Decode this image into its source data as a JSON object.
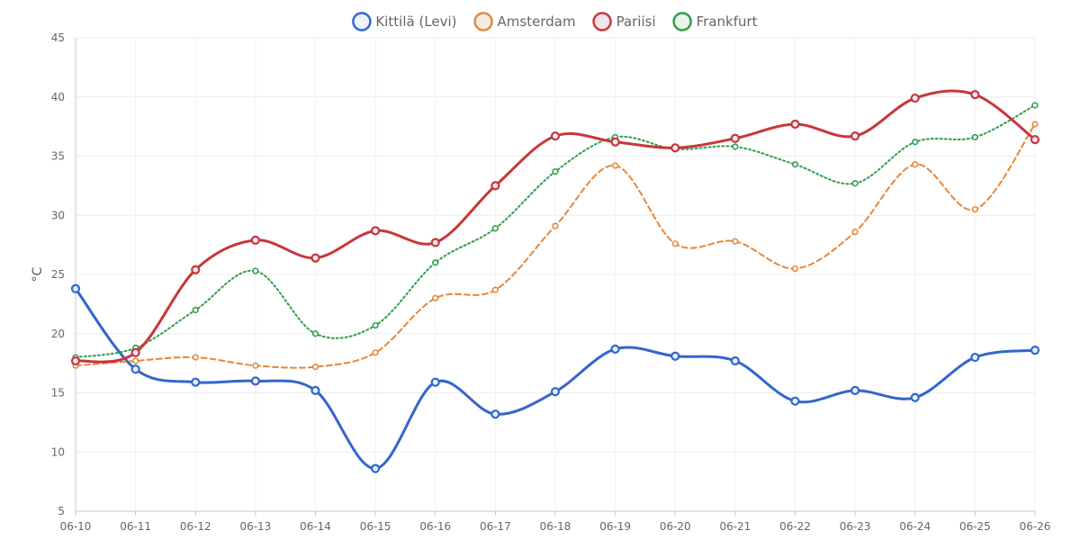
{
  "chart_data": {
    "type": "line",
    "ylabel": "°C",
    "ylim": [
      5,
      45
    ],
    "yticks": [
      5,
      10,
      15,
      20,
      25,
      30,
      35,
      40,
      45
    ],
    "grid": true,
    "legend_position": "top-center",
    "categories": [
      "06-10",
      "06-11",
      "06-12",
      "06-13",
      "06-14",
      "06-15",
      "06-16",
      "06-17",
      "06-18",
      "06-19",
      "06-20",
      "06-21",
      "06-22",
      "06-23",
      "06-24",
      "06-25",
      "06-26"
    ],
    "series": [
      {
        "name": "Kittilä (Levi)",
        "color": "#3366cc",
        "line_style": "solid",
        "values": [
          23.8,
          17.0,
          15.9,
          16.0,
          15.2,
          8.6,
          15.9,
          13.2,
          15.1,
          18.7,
          18.1,
          17.7,
          14.3,
          15.2,
          14.6,
          18.0,
          18.6
        ]
      },
      {
        "name": "Amsterdam",
        "color": "#e6873a",
        "line_style": "dashed",
        "values": [
          17.3,
          17.7,
          18.0,
          17.3,
          17.2,
          18.4,
          23.0,
          23.7,
          29.1,
          34.2,
          27.6,
          27.8,
          25.5,
          28.6,
          34.3,
          30.5,
          37.7
        ]
      },
      {
        "name": "Pariisi",
        "color": "#c8363b",
        "line_style": "solid",
        "values": [
          17.7,
          18.4,
          25.4,
          27.9,
          26.4,
          28.7,
          27.7,
          32.5,
          36.7,
          36.2,
          35.7,
          36.5,
          37.7,
          36.7,
          39.9,
          40.2,
          36.4
        ]
      },
      {
        "name": "Frankfurt",
        "color": "#2e9e4a",
        "line_style": "dotted",
        "values": [
          18.0,
          18.8,
          22.0,
          25.3,
          20.0,
          20.7,
          26.0,
          28.9,
          33.7,
          36.6,
          35.6,
          35.8,
          34.3,
          32.7,
          36.2,
          36.6,
          39.3
        ]
      }
    ]
  }
}
